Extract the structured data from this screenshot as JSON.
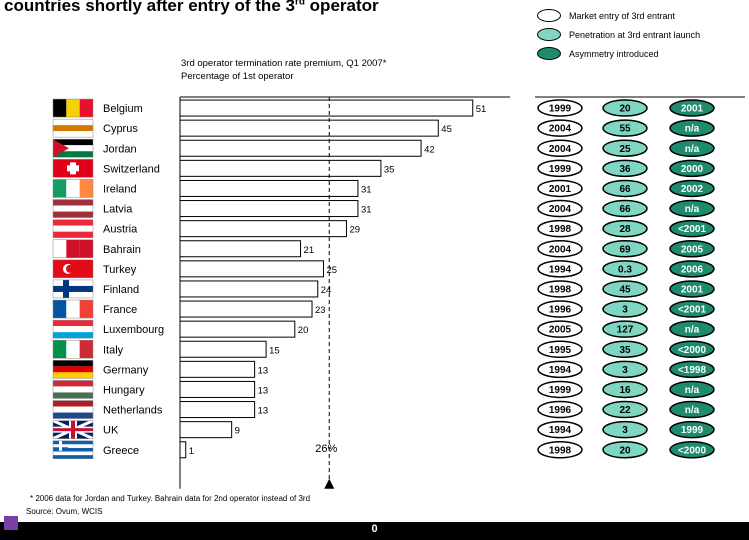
{
  "title": {
    "text": "countries shortly after entry of the 3",
    "sup": "rd",
    "suffix": " operator"
  },
  "legend": [
    {
      "label": "Market entry of 3rd entrant",
      "fill": "#ffffff"
    },
    {
      "label": "Penetration at 3rd entrant launch",
      "fill": "#7fd6c3"
    },
    {
      "label": "Asymmetry introduced",
      "fill": "#1e8a6e"
    }
  ],
  "chart_subtitle": {
    "line1": "3rd operator termination rate premium, Q1 2007*",
    "line2": "Percentage of 1st operator"
  },
  "chart_data": {
    "type": "bar",
    "orientation": "horizontal",
    "categories": [
      "Belgium",
      "Cyprus",
      "Jordan",
      "Switzerland",
      "Ireland",
      "Latvia",
      "Austria",
      "Bahrain",
      "Turkey",
      "Finland",
      "France",
      "Luxembourg",
      "Italy",
      "Germany",
      "Hungary",
      "Netherlands",
      "UK",
      "Greece"
    ],
    "values": [
      51,
      45,
      42,
      35,
      31,
      31,
      29,
      21,
      25,
      24,
      23,
      20,
      15,
      13,
      13,
      13,
      9,
      1
    ],
    "value_labels": [
      "51",
      "45",
      "42",
      "35",
      "31",
      "31",
      "29",
      "21",
      "25",
      "24",
      "23",
      "20",
      "15",
      "13",
      "13",
      "13",
      "9",
      "1"
    ],
    "reference_line": {
      "value": 26,
      "label": "26%"
    },
    "xlim": [
      0,
      55
    ]
  },
  "table": {
    "columns": [
      "Market entry of 3rd entrant",
      "Penetration at 3rd entrant launch",
      "Asymmetry introduced"
    ],
    "rows": [
      [
        "1999",
        "20",
        "2001"
      ],
      [
        "2004",
        "55",
        "n/a"
      ],
      [
        "2004",
        "25",
        "n/a"
      ],
      [
        "1999",
        "36",
        "2000"
      ],
      [
        "2001",
        "66",
        "2002"
      ],
      [
        "2004",
        "66",
        "n/a"
      ],
      [
        "1998",
        "28",
        "<2001"
      ],
      [
        "2004",
        "69",
        "2005"
      ],
      [
        "1994",
        "0.3",
        "2006"
      ],
      [
        "1998",
        "45",
        "2001"
      ],
      [
        "1996",
        "3",
        "<2001"
      ],
      [
        "2005",
        "127",
        "n/a"
      ],
      [
        "1995",
        "35",
        "<2000"
      ],
      [
        "1994",
        "3",
        "<1998"
      ],
      [
        "1999",
        "16",
        "n/a"
      ],
      [
        "1996",
        "22",
        "n/a"
      ],
      [
        "1994",
        "3",
        "1999"
      ],
      [
        "1998",
        "20",
        "<2000"
      ]
    ]
  },
  "footnote": "* 2006 data for Jordan and Turkey. Bahrain data for 2nd operator instead of 3rd",
  "source": "Source: Ovum, WCIS",
  "page_number": "0",
  "colors": {
    "oval_mid": "#7fd6c3",
    "oval_dark": "#1e8a6e",
    "bottom_square": "#7a3fa5"
  }
}
